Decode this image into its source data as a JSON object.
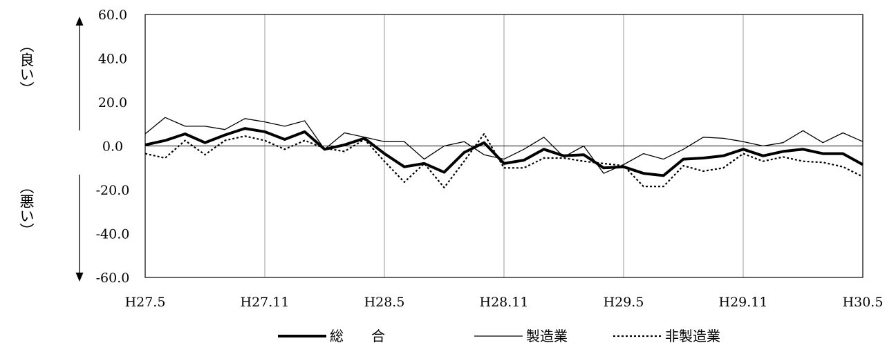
{
  "chart_data": {
    "type": "line",
    "title": "",
    "xlabel": "",
    "ylabel_top": "（良い）",
    "ylabel_bottom": "（悪い）",
    "ylim": [
      -60,
      60
    ],
    "y_ticks": [
      "60.0",
      "40.0",
      "20.0",
      "0.0",
      "-20.0",
      "-40.0",
      "-60.0"
    ],
    "y_tick_values": [
      60,
      40,
      20,
      0,
      -20,
      -40,
      -60
    ],
    "x_count": 37,
    "x_ticks": [
      {
        "index": 0,
        "label": "H27.5"
      },
      {
        "index": 6,
        "label": "H27.11"
      },
      {
        "index": 12,
        "label": "H28.5"
      },
      {
        "index": 18,
        "label": "H28.11"
      },
      {
        "index": 24,
        "label": "H29.5"
      },
      {
        "index": 30,
        "label": "H29.11"
      },
      {
        "index": 36,
        "label": "H30.5"
      }
    ],
    "grid": "vertical at x-tick labels; horizontal line at 0",
    "legend_position": "bottom",
    "series": [
      {
        "name": "総　　合",
        "style": "thick",
        "values": [
          0.5,
          2.5,
          5.5,
          1.5,
          5,
          8,
          6.5,
          3,
          6.5,
          -1.5,
          0.5,
          3.5,
          -3.5,
          -9.5,
          -8,
          -12,
          -3,
          1.5,
          -8,
          -6.5,
          -1.5,
          -4.5,
          -4,
          -10,
          -9.5,
          -12.5,
          -13.5,
          -6,
          -5.5,
          -4.5,
          -1.5,
          -4.5,
          -2.5,
          -1.5,
          -3.5,
          -3.5,
          -8.5
        ]
      },
      {
        "name": "製造業",
        "style": "thin",
        "values": [
          5.5,
          13,
          9,
          9,
          7.5,
          12.5,
          11,
          9,
          11.5,
          -1.5,
          6,
          4,
          2,
          2,
          -6,
          0,
          2,
          -4,
          -6,
          -1.5,
          4,
          -5,
          0,
          -12.5,
          -8.5,
          -3.5,
          -6,
          -1.5,
          4,
          3.5,
          2,
          0,
          1.5,
          7,
          1.5,
          6,
          2
        ]
      },
      {
        "name": "非製造業",
        "style": "dotted",
        "values": [
          -3.5,
          -5.5,
          2.5,
          -4,
          2.5,
          4.5,
          2.5,
          -1.5,
          2.5,
          -1,
          -2.5,
          3,
          -7,
          -16.5,
          -8,
          -19,
          -7,
          5.5,
          -10,
          -10,
          -5.5,
          -5.5,
          -7,
          -8,
          -9,
          -18.5,
          -18.5,
          -9,
          -11.5,
          -10,
          -3.5,
          -7,
          -5,
          -7,
          -7.5,
          -9.5,
          -14
        ]
      }
    ]
  }
}
